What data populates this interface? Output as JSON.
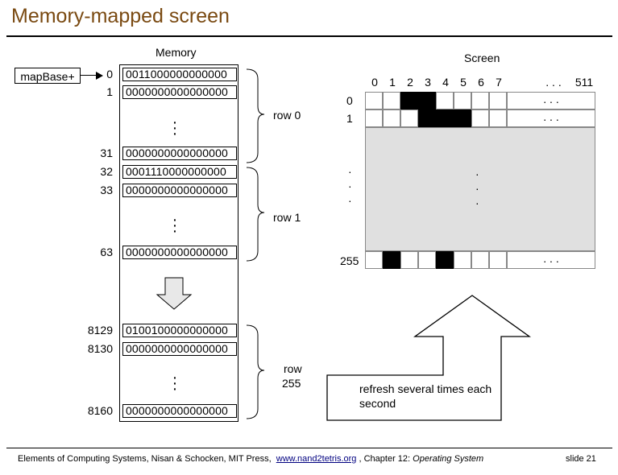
{
  "title": "Memory-mapped screen",
  "memory": {
    "heading": "Memory",
    "map_base_label": "mapBase+",
    "cells": [
      {
        "addr": "0",
        "bits": "0011000000000000"
      },
      {
        "addr": "1",
        "bits": "0000000000000000"
      },
      {
        "addr": "31",
        "bits": "0000000000000000"
      },
      {
        "addr": "32",
        "bits": "0001110000000000"
      },
      {
        "addr": "33",
        "bits": "0000000000000000"
      },
      {
        "addr": "63",
        "bits": "0000000000000000"
      },
      {
        "addr": "8129",
        "bits": "0100100000000000"
      },
      {
        "addr": "8130",
        "bits": "0000000000000000"
      },
      {
        "addr": "8160",
        "bits": "0000000000000000"
      }
    ],
    "row_labels": [
      "row 0",
      "row 1",
      "row",
      "255"
    ]
  },
  "screen": {
    "heading": "Screen",
    "column_labels": [
      "0",
      "1",
      "2",
      "3",
      "4",
      "5",
      "6",
      "7",
      ". . .",
      "511"
    ],
    "row_labels": [
      "0",
      "1",
      "255"
    ],
    "ellipsis": ". . .",
    "rows": [
      {
        "label": "0",
        "pixels": [
          0,
          0,
          1,
          1,
          0,
          0,
          0,
          0
        ]
      },
      {
        "label": "1",
        "pixels": [
          0,
          0,
          0,
          1,
          1,
          1,
          0,
          0
        ]
      },
      {
        "label": "255",
        "pixels": [
          0,
          1,
          0,
          0,
          1,
          0,
          0,
          0
        ]
      }
    ]
  },
  "refresh_label": "refresh several times each second",
  "footer": {
    "prefix": "Elements of Computing Systems, Nisan & Schocken, MIT Press,",
    "link": "www.nand2tetris.org",
    "chapter": ", Chapter 12:",
    "chapter_title": "Operating System",
    "slide": "slide 21"
  }
}
